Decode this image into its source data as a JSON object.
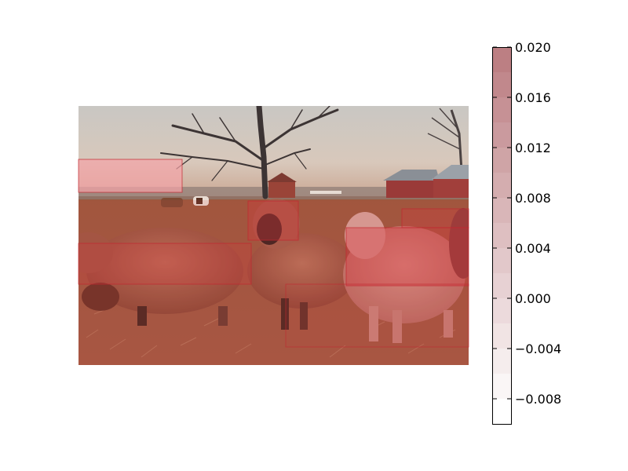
{
  "chart_data": {
    "type": "heatmap",
    "title": "",
    "background_image": {
      "subject": "sheep-in-pasture-photo",
      "description_visible_only": true
    },
    "overlay_color": "#d9363e",
    "highlight_regions": [
      {
        "name": "region-sky-left",
        "value": 0.01
      },
      {
        "name": "region-center-sheep",
        "value": 0.012
      },
      {
        "name": "region-right-sheep",
        "value": 0.014
      },
      {
        "name": "region-back-right",
        "value": 0.008
      },
      {
        "name": "region-left-sheep",
        "value": 0.006
      }
    ],
    "colorbar": {
      "min": -0.01,
      "max": 0.02,
      "levels": 15,
      "ticks": [
        0.02,
        0.016,
        0.012,
        0.008,
        0.004,
        0.0,
        -0.004,
        -0.008
      ],
      "tick_labels": [
        "0.020",
        "0.016",
        "0.012",
        "0.008",
        "0.004",
        "0.000",
        "−0.004",
        "−0.008"
      ],
      "color_low": "#ffffff",
      "color_high": "#bc7f83"
    }
  }
}
